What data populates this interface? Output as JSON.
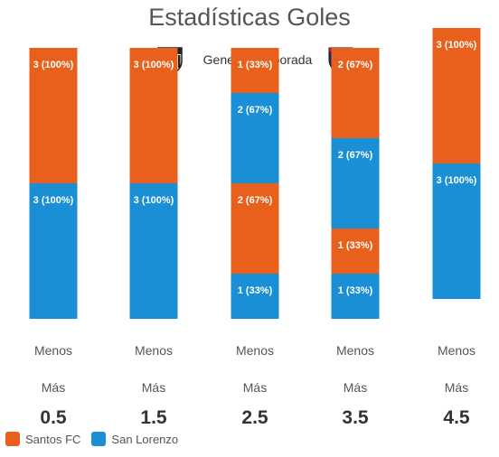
{
  "chart_data": {
    "type": "bar",
    "title": "Estadísticas Goles",
    "subtitle": "General temporada",
    "categories": [
      "0.5",
      "1.5",
      "2.5",
      "3.5",
      "4.5"
    ],
    "row_labels": {
      "under": "Menos",
      "over": "Más"
    },
    "series": [
      {
        "name": "Santos FC",
        "color": "#e8601c",
        "segments": [
          [
            {
              "value": 3,
              "label": "3 (100%)"
            }
          ],
          [
            {
              "value": 3,
              "label": "3 (100%)"
            }
          ],
          [
            {
              "value": 1,
              "label": "1 (33%)"
            },
            {
              "value": 2,
              "label": "2 (67%)"
            }
          ],
          [
            {
              "value": 2,
              "label": "2 (67%)"
            },
            {
              "value": 1,
              "label": "1 (33%)"
            }
          ],
          [
            {
              "value": 3,
              "label": "3 (100%)"
            }
          ]
        ]
      },
      {
        "name": "San Lorenzo",
        "color": "#1a8fd6",
        "segments": [
          [
            {
              "value": 3,
              "label": "3 (100%)"
            }
          ],
          [
            {
              "value": 3,
              "label": "3 (100%)"
            }
          ],
          [
            {
              "value": 2,
              "label": "2 (67%)"
            },
            {
              "value": 1,
              "label": "1 (33%)"
            }
          ],
          [
            {
              "value": 2,
              "label": "2 (67%)"
            },
            {
              "value": 1,
              "label": "1 (33%)"
            }
          ],
          [
            {
              "value": 3,
              "label": "3 (100%)"
            }
          ]
        ]
      }
    ],
    "stack_order": [
      [
        {
          "s": 0,
          "i": 0
        },
        {
          "s": 1,
          "i": 0
        }
      ],
      [
        {
          "s": 0,
          "i": 0
        },
        {
          "s": 1,
          "i": 0
        }
      ],
      [
        {
          "s": 0,
          "i": 0
        },
        {
          "s": 1,
          "i": 0
        },
        {
          "s": 0,
          "i": 1
        },
        {
          "s": 1,
          "i": 1
        }
      ],
      [
        {
          "s": 0,
          "i": 0
        },
        {
          "s": 1,
          "i": 0
        },
        {
          "s": 0,
          "i": 1
        },
        {
          "s": 1,
          "i": 1
        }
      ],
      [
        {
          "s": 0,
          "i": 0
        },
        {
          "s": 1,
          "i": 0
        }
      ]
    ],
    "grid": false,
    "legend_position": "bottom-left"
  },
  "teams": {
    "home_icon": "santos-crest-icon",
    "away_icon": "san-lorenzo-crest-icon"
  }
}
